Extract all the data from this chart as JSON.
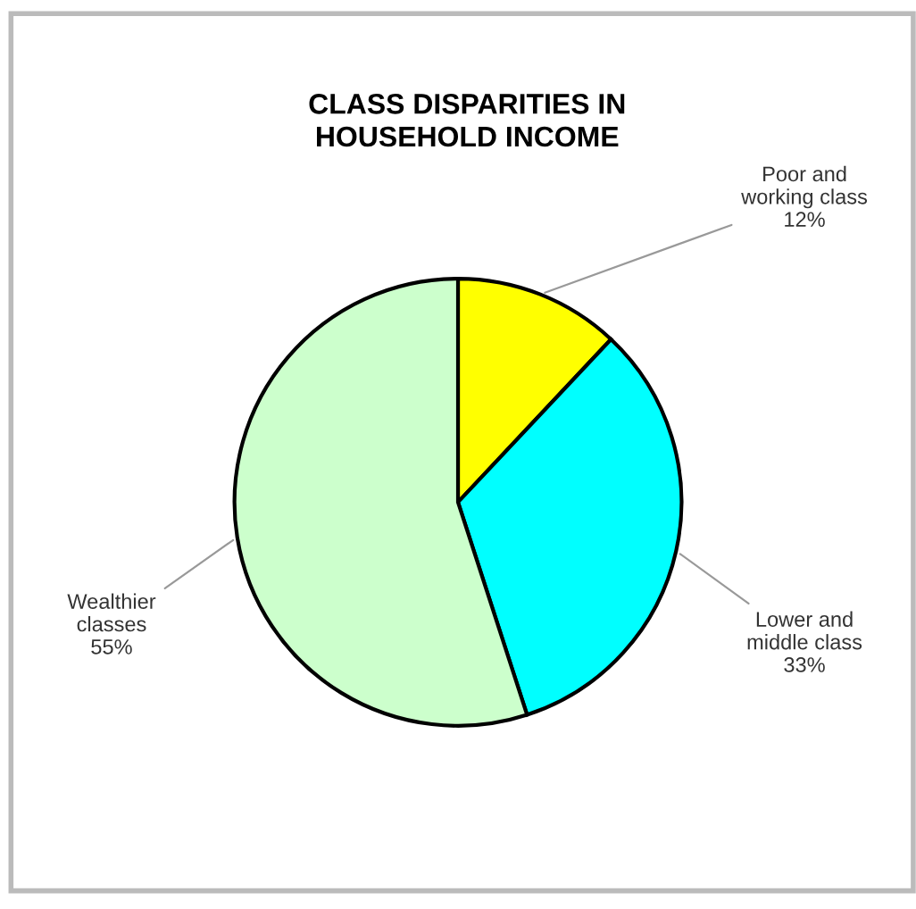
{
  "chart_data": {
    "type": "pie",
    "title": "CLASS DISPARITIES IN\nHOUSEHOLD INCOME",
    "categories": [
      "Poor and\nworking class",
      "Lower and\nmiddle class",
      "Wealthier\nclasses"
    ],
    "values": [
      12,
      33,
      55
    ],
    "colors": [
      "#ffff00",
      "#00ffff",
      "#ccffcc"
    ],
    "value_labels": [
      "12%",
      "33%",
      "55%"
    ]
  }
}
